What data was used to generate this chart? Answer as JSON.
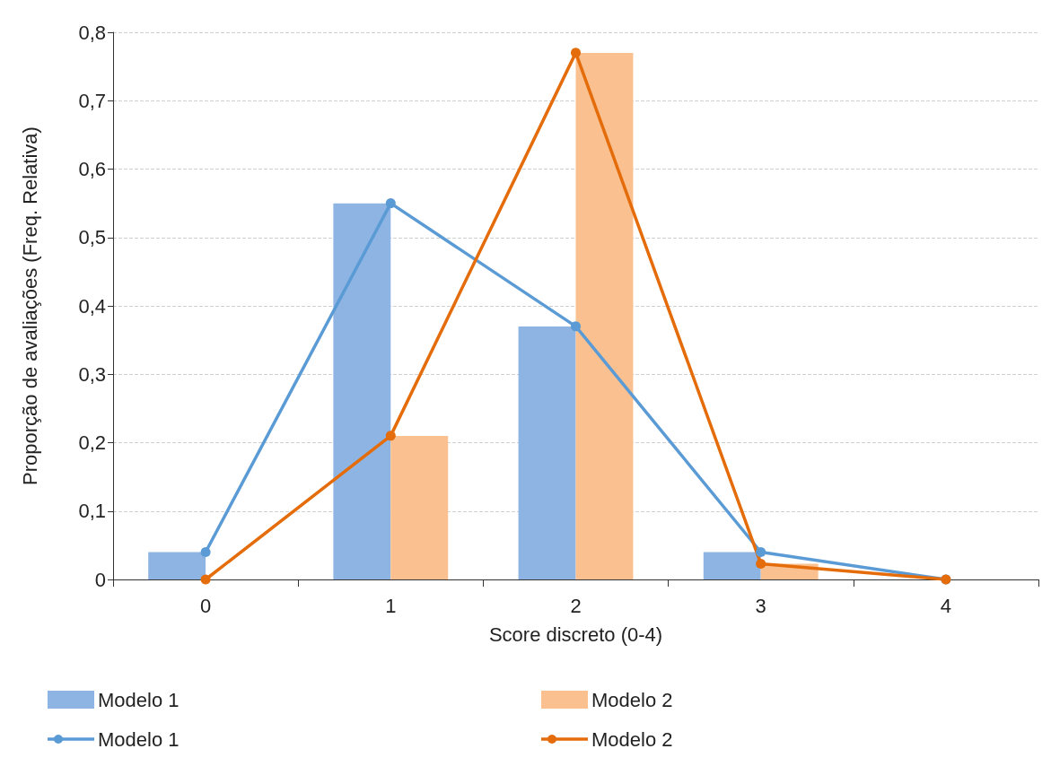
{
  "chart_data": {
    "type": "bar",
    "xlabel": "Score discreto (0-4)",
    "ylabel": "Proporção de avaliações (Freq. Relativa)",
    "categories": [
      "0",
      "1",
      "2",
      "3",
      "4"
    ],
    "series": [
      {
        "name": "Modelo 1",
        "color": "#8db4e2",
        "values": [
          0.04,
          0.55,
          0.37,
          0.04,
          0
        ]
      },
      {
        "name": "Modelo 2",
        "color": "#fac090",
        "values": [
          0,
          0.21,
          0.77,
          0.023,
          0
        ]
      },
      {
        "name": "Modelo 1",
        "type": "line",
        "color": "#5b9bd5",
        "values": [
          0.04,
          0.55,
          0.37,
          0.04,
          0
        ]
      },
      {
        "name": "Modelo 2",
        "type": "line",
        "color": "#e46c0a",
        "values": [
          0,
          0.21,
          0.77,
          0.023,
          0
        ]
      }
    ],
    "ylim": [
      0,
      0.8
    ],
    "yticks": [
      0,
      {
        "value": 0.1,
        "label": "0,1"
      },
      {
        "value": 0.2,
        "label": "0,2"
      },
      {
        "value": 0.3,
        "label": "0,3"
      },
      {
        "value": 0.4,
        "label": "0,4"
      },
      {
        "value": 0.5,
        "label": "0,5"
      },
      {
        "value": 0.6,
        "label": "0,6"
      },
      {
        "value": 0.7,
        "label": "0,7"
      },
      {
        "value": 0.8,
        "label": "0,8"
      }
    ],
    "grid": "y",
    "legend": "bottom",
    "marker": "circle"
  }
}
